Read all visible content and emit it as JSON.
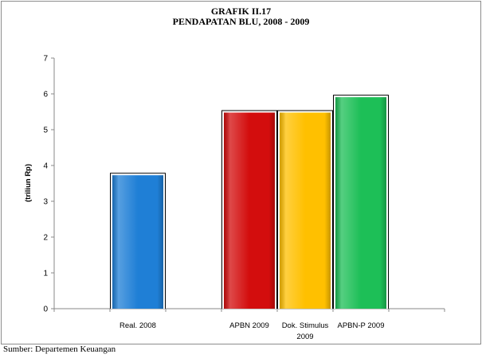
{
  "chart_data": {
    "type": "bar",
    "title": "GRAFIK II.17",
    "subtitle": "PENDAPATAN BLU, 2008 - 2009",
    "ylabel": "(triliun Rp)",
    "xlabel": "",
    "categories": [
      [
        "Real. 2008"
      ],
      [
        "APBN 2009"
      ],
      [
        "Dok. Stimulus",
        "2009"
      ],
      [
        "APBN-P 2009"
      ]
    ],
    "values": [
      3.75,
      5.5,
      5.5,
      5.93
    ],
    "colors": [
      "#1f7fd6",
      "#d30d0d",
      "#ffc000",
      "#1dbf57"
    ],
    "ylim": [
      0,
      7
    ],
    "yticks": [
      "0",
      "1",
      "2",
      "3",
      "4",
      "5",
      "6",
      "7"
    ],
    "grid": false
  },
  "source": "Sumber: Departemen Keuangan"
}
